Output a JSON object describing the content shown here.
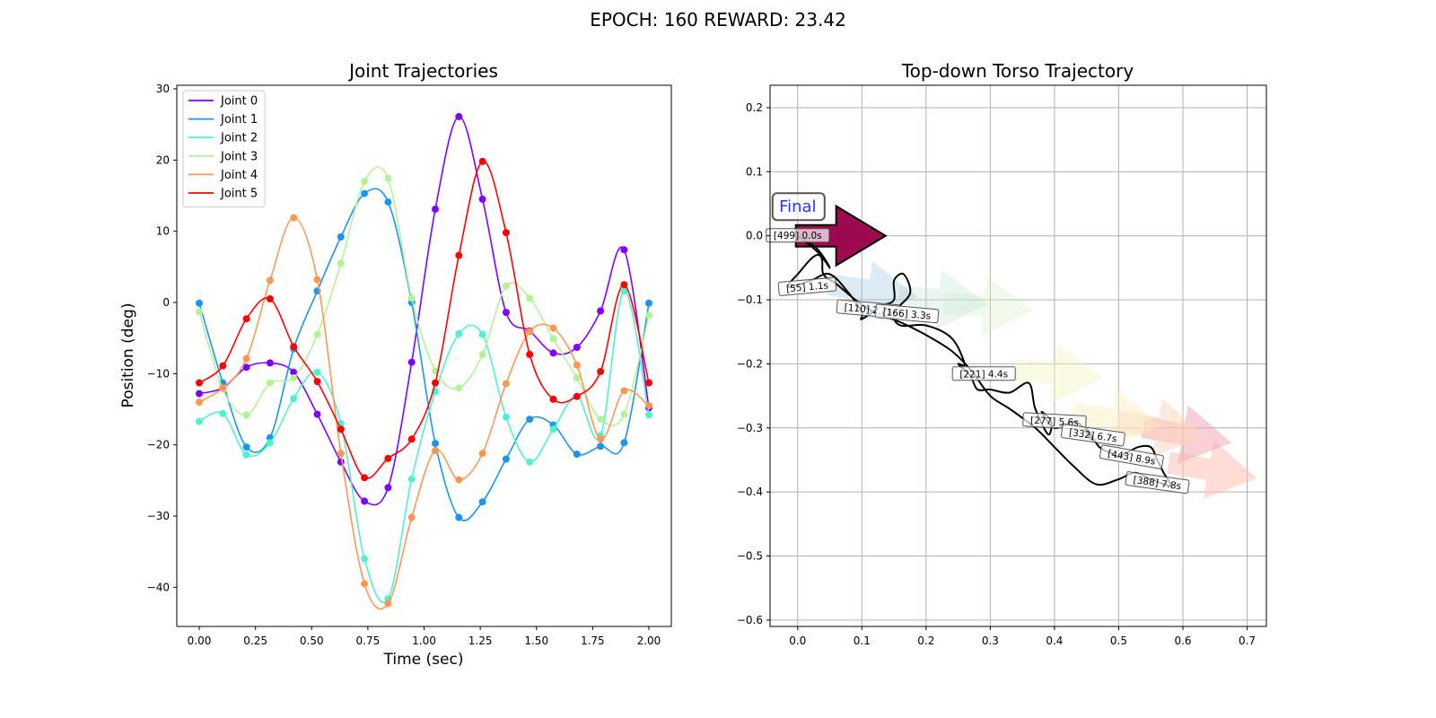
{
  "figure": {
    "suptitle": "EPOCH: 160 REWARD:  23.42"
  },
  "chart_data": [
    {
      "type": "line",
      "title": "Joint Trajectories",
      "xlabel": "Time (sec)",
      "ylabel": "Position (deg)",
      "xlim": [
        -0.1,
        2.1
      ],
      "ylim": [
        -45.5,
        30.5
      ],
      "xticks": [
        "0.00",
        "0.25",
        "0.50",
        "0.75",
        "1.00",
        "1.25",
        "1.50",
        "1.75",
        "2.00"
      ],
      "yticks": [
        "−40",
        "−30",
        "−20",
        "−10",
        "0",
        "10",
        "20",
        "30"
      ],
      "legend": "top-left",
      "grid": false,
      "x": [
        0.0,
        0.105,
        0.21,
        0.315,
        0.42,
        0.525,
        0.63,
        0.735,
        0.84,
        0.945,
        1.05,
        1.155,
        1.26,
        1.365,
        1.47,
        1.575,
        1.68,
        1.785,
        1.89,
        2.0
      ],
      "series": [
        {
          "name": "Joint 0",
          "color": "#8000ff",
          "values": [
            -12.8,
            -12.0,
            -9.1,
            -8.5,
            -9.8,
            -15.7,
            -22.4,
            -27.9,
            -26.0,
            -8.4,
            13.1,
            26.1,
            14.5,
            -1.4,
            -4.0,
            -7.1,
            -6.3,
            -1.2,
            7.4,
            -14.8
          ]
        },
        {
          "name": "Joint 1",
          "color": "#1996f3",
          "values": [
            -0.1,
            -11.3,
            -20.3,
            -19.0,
            -6.5,
            1.6,
            9.2,
            15.3,
            14.1,
            0.0,
            -19.8,
            -30.2,
            -28.0,
            -22.0,
            -16.4,
            -17.2,
            -21.3,
            -20.2,
            -19.7,
            -0.1
          ]
        },
        {
          "name": "Joint 2",
          "color": "#4df3ce",
          "values": [
            -16.7,
            -15.6,
            -21.4,
            -19.7,
            -13.5,
            -9.8,
            -17.0,
            -36.0,
            -41.6,
            -24.8,
            -12.5,
            -4.4,
            -4.5,
            -16.1,
            -22.4,
            -17.8,
            -13.2,
            -18.7,
            1.6,
            -15.8
          ]
        },
        {
          "name": "Joint 3",
          "color": "#b2f396",
          "values": [
            -1.3,
            -12.2,
            -15.8,
            -11.3,
            -10.6,
            -4.5,
            5.5,
            17.0,
            17.4,
            0.6,
            -9.6,
            -12.0,
            -7.3,
            2.3,
            0.6,
            -5.1,
            -10.6,
            -16.4,
            -15.7,
            -1.8
          ]
        },
        {
          "name": "Joint 4",
          "color": "#ff964f",
          "values": [
            -14.0,
            -12.0,
            -7.9,
            3.1,
            11.9,
            3.2,
            -21.2,
            -39.5,
            -42.3,
            -30.2,
            -20.8,
            -24.9,
            -21.2,
            -11.4,
            -4.1,
            -3.6,
            -8.8,
            -19.2,
            -12.4,
            -14.5
          ]
        },
        {
          "name": "Joint 5",
          "color": "#ff0000",
          "values": [
            -11.3,
            -8.9,
            -2.3,
            0.5,
            -6.2,
            -11.1,
            -17.8,
            -24.6,
            -21.9,
            -19.2,
            -11.3,
            6.6,
            19.8,
            9.8,
            -7.3,
            -13.6,
            -13.2,
            -9.7,
            2.5,
            -11.3
          ]
        }
      ]
    },
    {
      "type": "line",
      "title": "Top-down Torso Trajectory",
      "xlim": [
        -0.043,
        0.73
      ],
      "ylim": [
        -0.61,
        0.235
      ],
      "xticks": [
        "0.0",
        "0.1",
        "0.2",
        "0.3",
        "0.4",
        "0.5",
        "0.6",
        "0.7"
      ],
      "yticks": [
        "−0.6",
        "−0.5",
        "−0.4",
        "−0.3",
        "−0.2",
        "−0.1",
        "0.0",
        "0.1",
        "0.2"
      ],
      "grid": true,
      "final_label": "Final",
      "path": [
        [
          0.0,
          0.0
        ],
        [
          0.03,
          -0.02
        ],
        [
          0.05,
          -0.05
        ],
        [
          0.03,
          -0.03
        ],
        [
          0.0,
          -0.06
        ],
        [
          -0.015,
          -0.08
        ],
        [
          0.02,
          -0.07
        ],
        [
          0.05,
          -0.06
        ],
        [
          0.08,
          -0.09
        ],
        [
          0.1,
          -0.12
        ],
        [
          0.1,
          -0.13
        ],
        [
          0.13,
          -0.11
        ],
        [
          0.15,
          -0.1
        ],
        [
          0.15,
          -0.07
        ],
        [
          0.165,
          -0.06
        ],
        [
          0.175,
          -0.09
        ],
        [
          0.15,
          -0.12
        ],
        [
          0.16,
          -0.14
        ],
        [
          0.2,
          -0.14
        ],
        [
          0.24,
          -0.16
        ],
        [
          0.26,
          -0.2
        ],
        [
          0.25,
          -0.2
        ],
        [
          0.26,
          -0.21
        ],
        [
          0.27,
          -0.22
        ],
        [
          0.28,
          -0.24
        ],
        [
          0.3,
          -0.24
        ],
        [
          0.33,
          -0.245
        ],
        [
          0.36,
          -0.23
        ],
        [
          0.37,
          -0.27
        ],
        [
          0.39,
          -0.31
        ],
        [
          0.395,
          -0.29
        ],
        [
          0.38,
          -0.275
        ],
        [
          0.4,
          -0.3
        ],
        [
          0.43,
          -0.29
        ],
        [
          0.445,
          -0.3
        ],
        [
          0.46,
          -0.32
        ],
        [
          0.45,
          -0.3
        ],
        [
          0.47,
          -0.33
        ],
        [
          0.49,
          -0.34
        ],
        [
          0.5,
          -0.345
        ],
        [
          0.53,
          -0.33
        ],
        [
          0.55,
          -0.33
        ],
        [
          0.56,
          -0.35
        ],
        [
          0.57,
          -0.37
        ],
        [
          0.58,
          -0.39
        ],
        [
          0.55,
          -0.38
        ],
        [
          0.525,
          -0.37
        ],
        [
          0.5,
          -0.38
        ],
        [
          0.465,
          -0.388
        ],
        [
          0.43,
          -0.36
        ],
        [
          0.4,
          -0.33
        ],
        [
          0.37,
          -0.3
        ],
        [
          0.33,
          -0.27
        ],
        [
          0.3,
          -0.25
        ],
        [
          0.27,
          -0.21
        ],
        [
          0.24,
          -0.18
        ],
        [
          0.2,
          -0.155
        ],
        [
          0.16,
          -0.135
        ],
        [
          0.12,
          -0.12
        ],
        [
          0.09,
          -0.1
        ],
        [
          0.06,
          -0.075
        ],
        [
          0.04,
          -0.06
        ],
        [
          0.035,
          -0.03
        ],
        [
          0.0,
          0.0
        ]
      ],
      "arrows": [
        {
          "x": 0.06,
          "y": 0.0,
          "angle_deg": 0,
          "color": "#9e0a4f",
          "opacity": 1.0,
          "edge": true
        },
        {
          "x": 0.11,
          "y": -0.085,
          "angle_deg": -8,
          "color": "#9fc8df",
          "opacity": 0.35,
          "edge": false
        },
        {
          "x": 0.22,
          "y": -0.1,
          "angle_deg": -5,
          "color": "#bfe4d8",
          "opacity": 0.35,
          "edge": false
        },
        {
          "x": 0.29,
          "y": -0.11,
          "angle_deg": -5,
          "color": "#d7efc2",
          "opacity": 0.35,
          "edge": false
        },
        {
          "x": 0.4,
          "y": -0.215,
          "angle_deg": -5,
          "color": "#f5f7c5",
          "opacity": 0.45,
          "edge": false
        },
        {
          "x": 0.49,
          "y": -0.285,
          "angle_deg": -8,
          "color": "#fdeec0",
          "opacity": 0.45,
          "edge": false
        },
        {
          "x": 0.56,
          "y": -0.3,
          "angle_deg": -10,
          "color": "#fbd5b8",
          "opacity": 0.5,
          "edge": false
        },
        {
          "x": 0.6,
          "y": -0.31,
          "angle_deg": -10,
          "color": "#f2a7b4",
          "opacity": 0.55,
          "edge": false
        },
        {
          "x": 0.64,
          "y": -0.365,
          "angle_deg": -10,
          "color": "#fbc1b2",
          "opacity": 0.55,
          "edge": false
        }
      ],
      "annotations": [
        {
          "text": "[499] 0.0s",
          "x": 0.0,
          "y": 0.0,
          "rotate": 0
        },
        {
          "text": "[55] 1.1s",
          "x": 0.015,
          "y": -0.08,
          "rotate": 5
        },
        {
          "text": "[110] 2.2s",
          "x": 0.11,
          "y": -0.115,
          "rotate": -5
        },
        {
          "text": "[166] 3.3s",
          "x": 0.17,
          "y": -0.122,
          "rotate": -5
        },
        {
          "text": "[221] 4.4s",
          "x": 0.29,
          "y": -0.216,
          "rotate": 0
        },
        {
          "text": "[277] 5.6s",
          "x": 0.4,
          "y": -0.29,
          "rotate": -3
        },
        {
          "text": "[332] 6.7s",
          "x": 0.46,
          "y": -0.312,
          "rotate": -8
        },
        {
          "text": "[443] 8.9s",
          "x": 0.52,
          "y": -0.346,
          "rotate": -10
        },
        {
          "text": "[388] 7.8s",
          "x": 0.56,
          "y": -0.386,
          "rotate": -8
        }
      ]
    }
  ]
}
